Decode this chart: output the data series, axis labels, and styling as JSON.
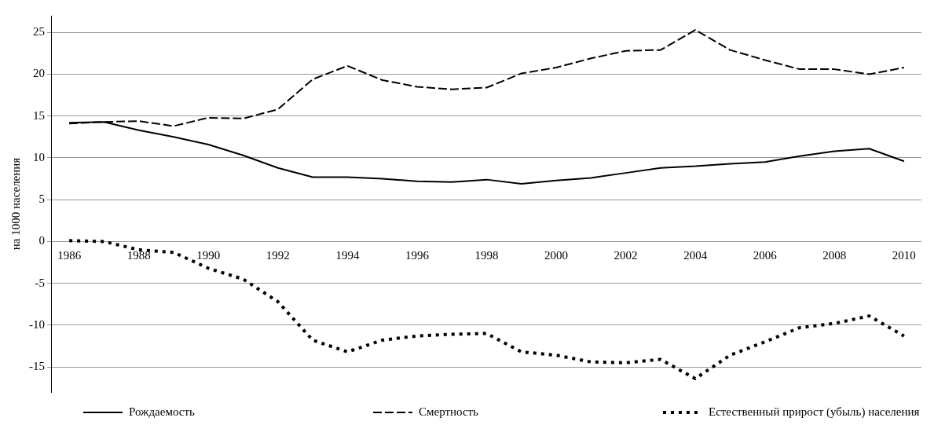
{
  "chart_data": {
    "type": "line",
    "ylabel": "на 1000 населения",
    "categories": [
      "1986",
      null,
      "1988",
      null,
      "1990",
      null,
      "1992",
      null,
      "1994",
      null,
      "1996",
      null,
      "1998",
      null,
      "2000",
      null,
      "2002",
      null,
      "2004",
      null,
      "2006",
      null,
      "2008",
      null,
      "2010"
    ],
    "series": [
      {
        "name": "Рождаемость",
        "color": "#000000",
        "line_style": "solid",
        "values": [
          14.2,
          14.3,
          13.3,
          12.5,
          11.6,
          10.3,
          8.8,
          7.7,
          7.7,
          7.5,
          7.2,
          7.1,
          7.4,
          6.9,
          7.3,
          7.6,
          8.2,
          8.8,
          9.0,
          9.3,
          9.5,
          10.2,
          10.8,
          11.1,
          9.6
        ]
      },
      {
        "name": "Смертность",
        "color": "#000000",
        "line_style": "dashed",
        "values": [
          14.1,
          14.3,
          14.4,
          13.8,
          14.8,
          14.7,
          15.8,
          19.4,
          21.0,
          19.3,
          18.5,
          18.2,
          18.4,
          20.1,
          20.8,
          21.9,
          22.8,
          22.9,
          25.3,
          22.9,
          21.7,
          20.6,
          20.6,
          20.0,
          20.8
        ]
      },
      {
        "name": "Естественный прирост (убыль) населения",
        "color": "#000000",
        "line_style": "dotted",
        "values": [
          0.1,
          0.0,
          -1.0,
          -1.3,
          -3.2,
          -4.5,
          -7.2,
          -11.8,
          -13.2,
          -11.8,
          -11.3,
          -11.1,
          -11.0,
          -13.2,
          -13.6,
          -14.4,
          -14.5,
          -14.1,
          -16.4,
          -13.6,
          -12.0,
          -10.3,
          -9.8,
          -8.9,
          -11.3
        ]
      }
    ],
    "ylim": [
      -18,
      27
    ],
    "yticks": [
      -15,
      -10,
      -5,
      0,
      5,
      10,
      15,
      20,
      25
    ],
    "grid": "y",
    "legend": "bottom",
    "marker": "none"
  }
}
